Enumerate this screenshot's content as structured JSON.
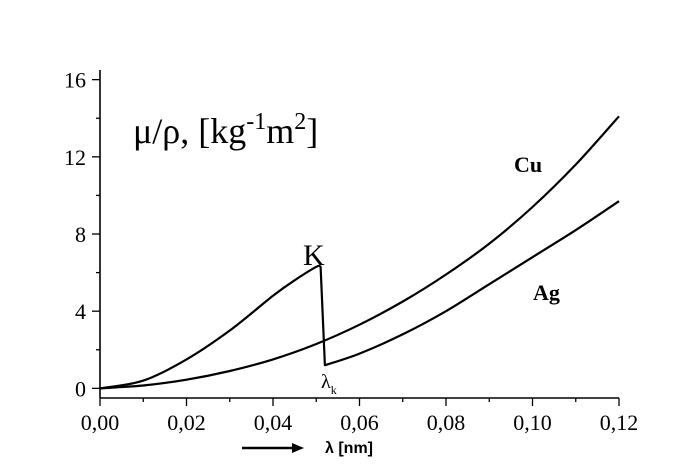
{
  "chart_data": {
    "type": "line",
    "xlabel": "λ [nm]",
    "ylabel": {
      "main": "μ/ρ, [kg",
      "exp1": "-1",
      "mid": "m",
      "exp2": "2",
      "end": "]"
    },
    "xlim": [
      0.0,
      0.12
    ],
    "ylim": [
      -0.5,
      16.5
    ],
    "x_ticks": [
      "0,00",
      "0,02",
      "0,04",
      "0,06",
      "0,08",
      "0,10",
      "0,12"
    ],
    "x_tick_values": [
      0.0,
      0.02,
      0.04,
      0.06,
      0.08,
      0.1,
      0.12
    ],
    "y_ticks": [
      "0",
      "4",
      "8",
      "12",
      "16"
    ],
    "y_tick_values": [
      0,
      4,
      8,
      12,
      16
    ],
    "series": [
      {
        "name": "Cu",
        "x": [
          0.0,
          0.01,
          0.02,
          0.03,
          0.04,
          0.05,
          0.06,
          0.07,
          0.08,
          0.09,
          0.1,
          0.11,
          0.12
        ],
        "y": [
          0.0,
          0.15,
          0.45,
          0.9,
          1.5,
          2.3,
          3.3,
          4.5,
          5.9,
          7.5,
          9.4,
          11.6,
          14.1
        ]
      },
      {
        "name": "Ag",
        "x": [
          0.0,
          0.01,
          0.02,
          0.03,
          0.04,
          0.045,
          0.05,
          0.051,
          0.052,
          0.06,
          0.07,
          0.08,
          0.09,
          0.1,
          0.11,
          0.12
        ],
        "y": [
          0.0,
          0.4,
          1.5,
          3.0,
          4.8,
          5.6,
          6.3,
          6.3,
          1.2,
          1.8,
          2.8,
          4.0,
          5.4,
          6.8,
          8.2,
          9.7
        ]
      }
    ],
    "annotations": {
      "edge": "K",
      "edge_wavelength": "λ",
      "edge_wavelength_sub": "k"
    },
    "grid": false,
    "arrow_under_xlabel": true
  }
}
